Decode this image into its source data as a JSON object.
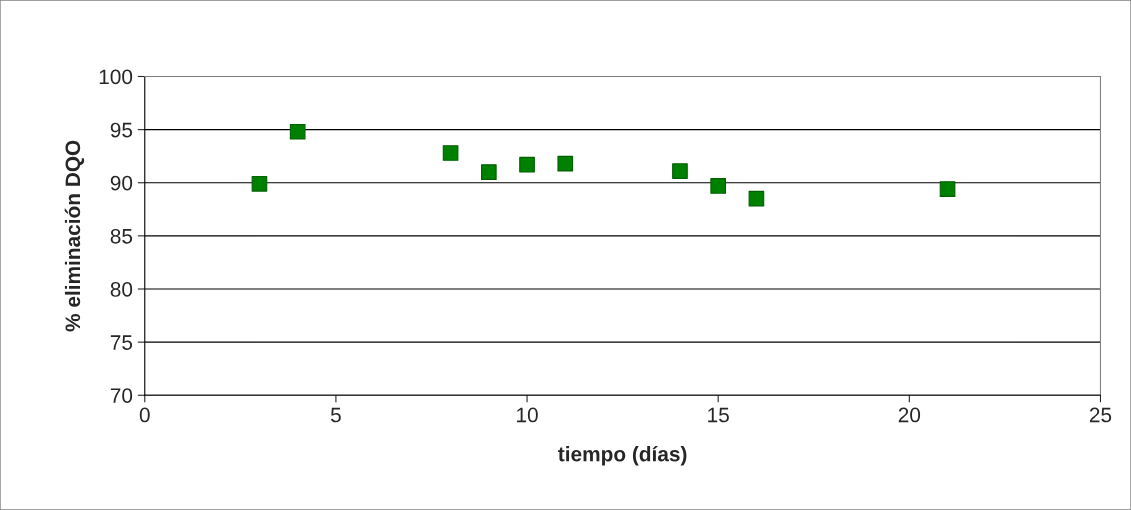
{
  "chart_data": {
    "type": "scatter",
    "xlabel": "tiempo (días)",
    "ylabel": "% eliminación DQO",
    "x": [
      3,
      4,
      8,
      9,
      10,
      11,
      14,
      15,
      16,
      21
    ],
    "series": [
      {
        "color": "#008000",
        "values": [
          89.9,
          94.8,
          92.8,
          91.0,
          91.7,
          91.8,
          91.1,
          89.7,
          88.5,
          89.4
        ]
      }
    ],
    "xlim": [
      0,
      25
    ],
    "xticks": [
      0,
      5,
      10,
      15,
      20,
      25
    ],
    "ylim": [
      70,
      100
    ],
    "yticks": [
      70,
      75,
      80,
      85,
      90,
      95,
      100
    ],
    "grid": "y",
    "marker": "square"
  }
}
